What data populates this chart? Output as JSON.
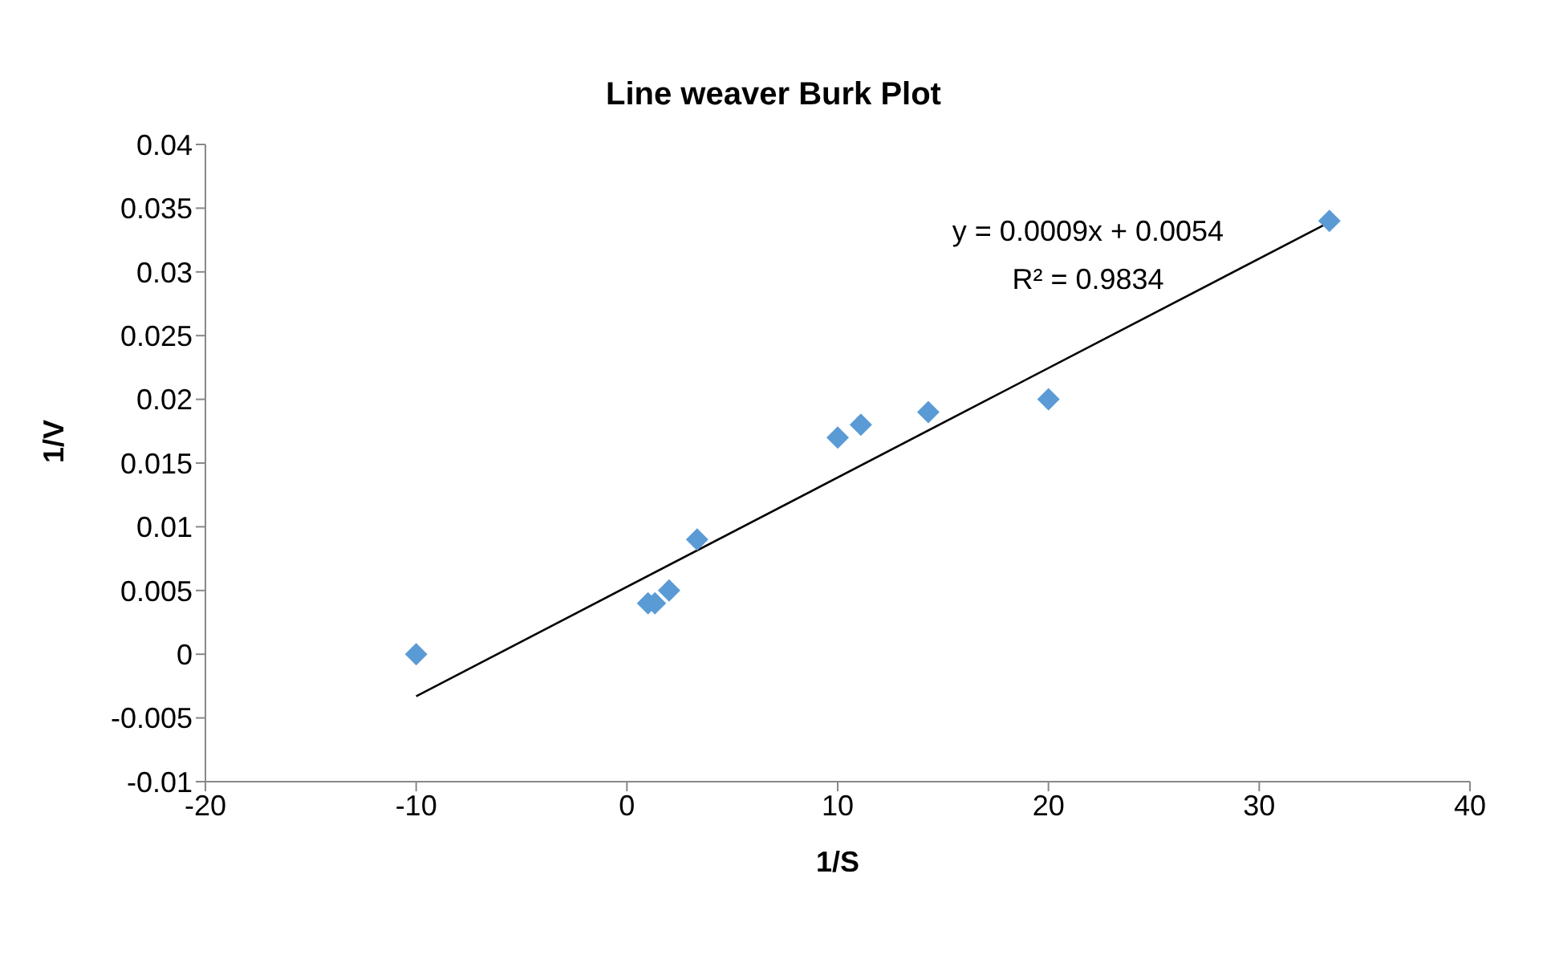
{
  "chart_data": {
    "type": "scatter",
    "title": "Line weaver Burk Plot",
    "xlabel": "1/S",
    "ylabel": "1/V",
    "annotations": [
      "y = 0.0009x + 0.0054",
      "R² = 0.9834"
    ],
    "series": [
      {
        "color": "#5b9bd5",
        "marker": "diamond",
        "x": [
          -10,
          1,
          1.33,
          2,
          3.33,
          10,
          11.1,
          14.3,
          20,
          33.33
        ],
        "values": [
          0,
          0.004,
          0.004,
          0.005,
          0.009,
          0.017,
          0.018,
          0.019,
          0.02,
          0.034
        ]
      },
      {
        "type": "line",
        "color": "#000000",
        "marker": "none",
        "x": [
          -10,
          33.33
        ],
        "values": [
          -0.0033,
          0.0339
        ]
      }
    ],
    "xlim": [
      -20,
      40
    ],
    "xticks": [
      -20,
      -10,
      0,
      10,
      20,
      30,
      40
    ],
    "ylim": [
      -0.01,
      0.04
    ],
    "yticks": [
      -0.01,
      -0.005,
      0,
      0.005,
      0.01,
      0.015,
      0.02,
      0.025,
      0.03,
      0.035,
      0.04
    ],
    "grid": false
  }
}
